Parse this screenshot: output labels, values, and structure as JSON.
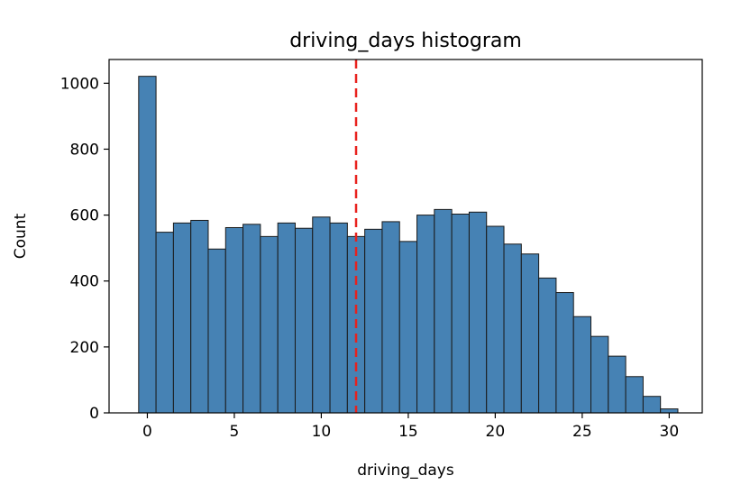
{
  "chart_data": {
    "type": "bar",
    "title": "driving_days histogram",
    "xlabel": "driving_days",
    "ylabel": "Count",
    "x": [
      0,
      1,
      2,
      3,
      4,
      5,
      6,
      7,
      8,
      9,
      10,
      11,
      12,
      13,
      14,
      15,
      16,
      17,
      18,
      19,
      20,
      21,
      22,
      23,
      24,
      25,
      26,
      27,
      28,
      29,
      30
    ],
    "values": [
      1021,
      548,
      576,
      584,
      497,
      562,
      572,
      535,
      576,
      560,
      594,
      576,
      535,
      557,
      580,
      520,
      600,
      617,
      603,
      609,
      566,
      512,
      482,
      409,
      365,
      292,
      232,
      172,
      110,
      50,
      12
    ],
    "xlim": [
      -2.2,
      31.9
    ],
    "ylim": [
      0,
      1072
    ],
    "xticks": [
      0,
      5,
      10,
      15,
      20,
      25,
      30
    ],
    "yticks": [
      0,
      200,
      400,
      600,
      800,
      1000
    ],
    "bar_width": 1,
    "bar_color": "#4682b4",
    "edge_color": "#1a1a1a",
    "median_line": {
      "x": 12,
      "color": "#e8211d",
      "style": "dashed"
    },
    "grid": false
  }
}
